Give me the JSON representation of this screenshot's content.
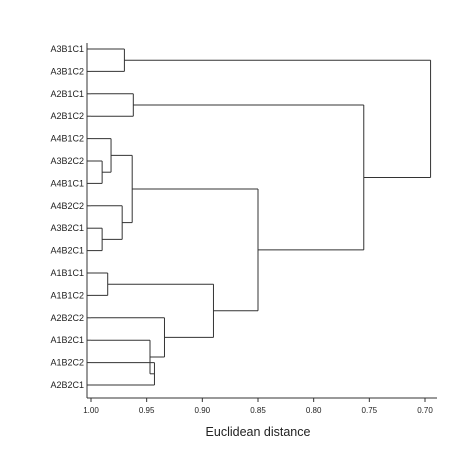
{
  "chart_data": {
    "type": "dendrogram",
    "leaves": [
      "A3B1C1",
      "A3B1C2",
      "A2B1C1",
      "A2B1C2",
      "A4B1C2",
      "A3B2C2",
      "A4B1C1",
      "A4B2C2",
      "A3B2C1",
      "A4B2C1",
      "A1B1C1",
      "A1B1C2",
      "A2B2C2",
      "A1B2C1",
      "A1B2C2",
      "A2B2C1"
    ],
    "merges": [
      {
        "id": "m1",
        "left": "A3B1C1",
        "right": "A3B1C2",
        "height": 0.97
      },
      {
        "id": "m2",
        "left": "A2B1C1",
        "right": "A2B1C2",
        "height": 0.962
      },
      {
        "id": "m3",
        "left": "A3B2C2",
        "right": "A4B1C1",
        "height": 0.99
      },
      {
        "id": "m4",
        "left": "A4B1C2",
        "right": "m3",
        "height": 0.982
      },
      {
        "id": "m5",
        "left": "A3B2C1",
        "right": "A4B2C1",
        "height": 0.99
      },
      {
        "id": "m6",
        "left": "A4B2C2",
        "right": "m5",
        "height": 0.972
      },
      {
        "id": "m7",
        "left": "m4",
        "right": "m6",
        "height": 0.963
      },
      {
        "id": "m8",
        "left": "A1B1C1",
        "right": "A1B1C2",
        "height": 0.985
      },
      {
        "id": "m9",
        "left": "A1B2C2",
        "right": "A2B2C1",
        "height": 0.943
      },
      {
        "id": "m10",
        "left": "A1B2C1",
        "right": "m9",
        "height": 0.947
      },
      {
        "id": "m11",
        "left": "A2B2C2",
        "right": "m10",
        "height": 0.934
      },
      {
        "id": "m12",
        "left": "m8",
        "right": "m11",
        "height": 0.89
      },
      {
        "id": "m13",
        "left": "m7",
        "right": "m12",
        "height": 0.85
      },
      {
        "id": "m14",
        "left": "m2",
        "right": "m13",
        "height": 0.755
      },
      {
        "id": "m15",
        "left": "m1",
        "right": "m14",
        "height": 0.695
      }
    ],
    "x_axis": {
      "ticks": [
        1.0,
        0.95,
        0.9,
        0.85,
        0.8,
        0.75,
        0.7
      ],
      "tick_labels": [
        "1.00",
        "0.95",
        "0.90",
        "0.85",
        "0.80",
        "0.75",
        "0.70"
      ],
      "range": [
        1.0,
        0.695
      ],
      "reversed": true
    },
    "xlabel": "Euclidean distance",
    "grid": false
  }
}
